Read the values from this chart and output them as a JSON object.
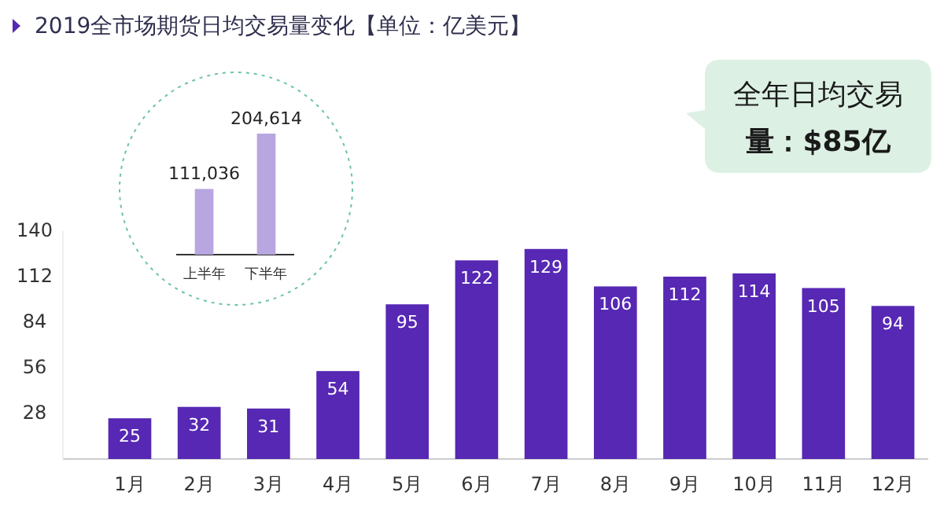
{
  "chart_data": [
    {
      "type": "bar",
      "title": "2019全市场期货日均交易量变化【单位：亿美元】",
      "categories": [
        "1月",
        "2月",
        "3月",
        "4月",
        "5月",
        "6月",
        "7月",
        "8月",
        "9月",
        "10月",
        "11月",
        "12月"
      ],
      "values": [
        25,
        32,
        31,
        54,
        95,
        122,
        129,
        106,
        112,
        114,
        105,
        94
      ],
      "color": "#5628b4",
      "ylim": [
        0,
        140
      ],
      "yticks": [
        28,
        56,
        84,
        112,
        140
      ],
      "data_labels": true,
      "annotations": [
        "全年日均交易量：$85亿"
      ]
    },
    {
      "type": "bar",
      "categories": [
        "上半年",
        "下半年"
      ],
      "values": [
        111036,
        204614
      ],
      "color": "#b7a6e0",
      "value_labels": [
        "111,036",
        "204,614"
      ]
    }
  ]
}
